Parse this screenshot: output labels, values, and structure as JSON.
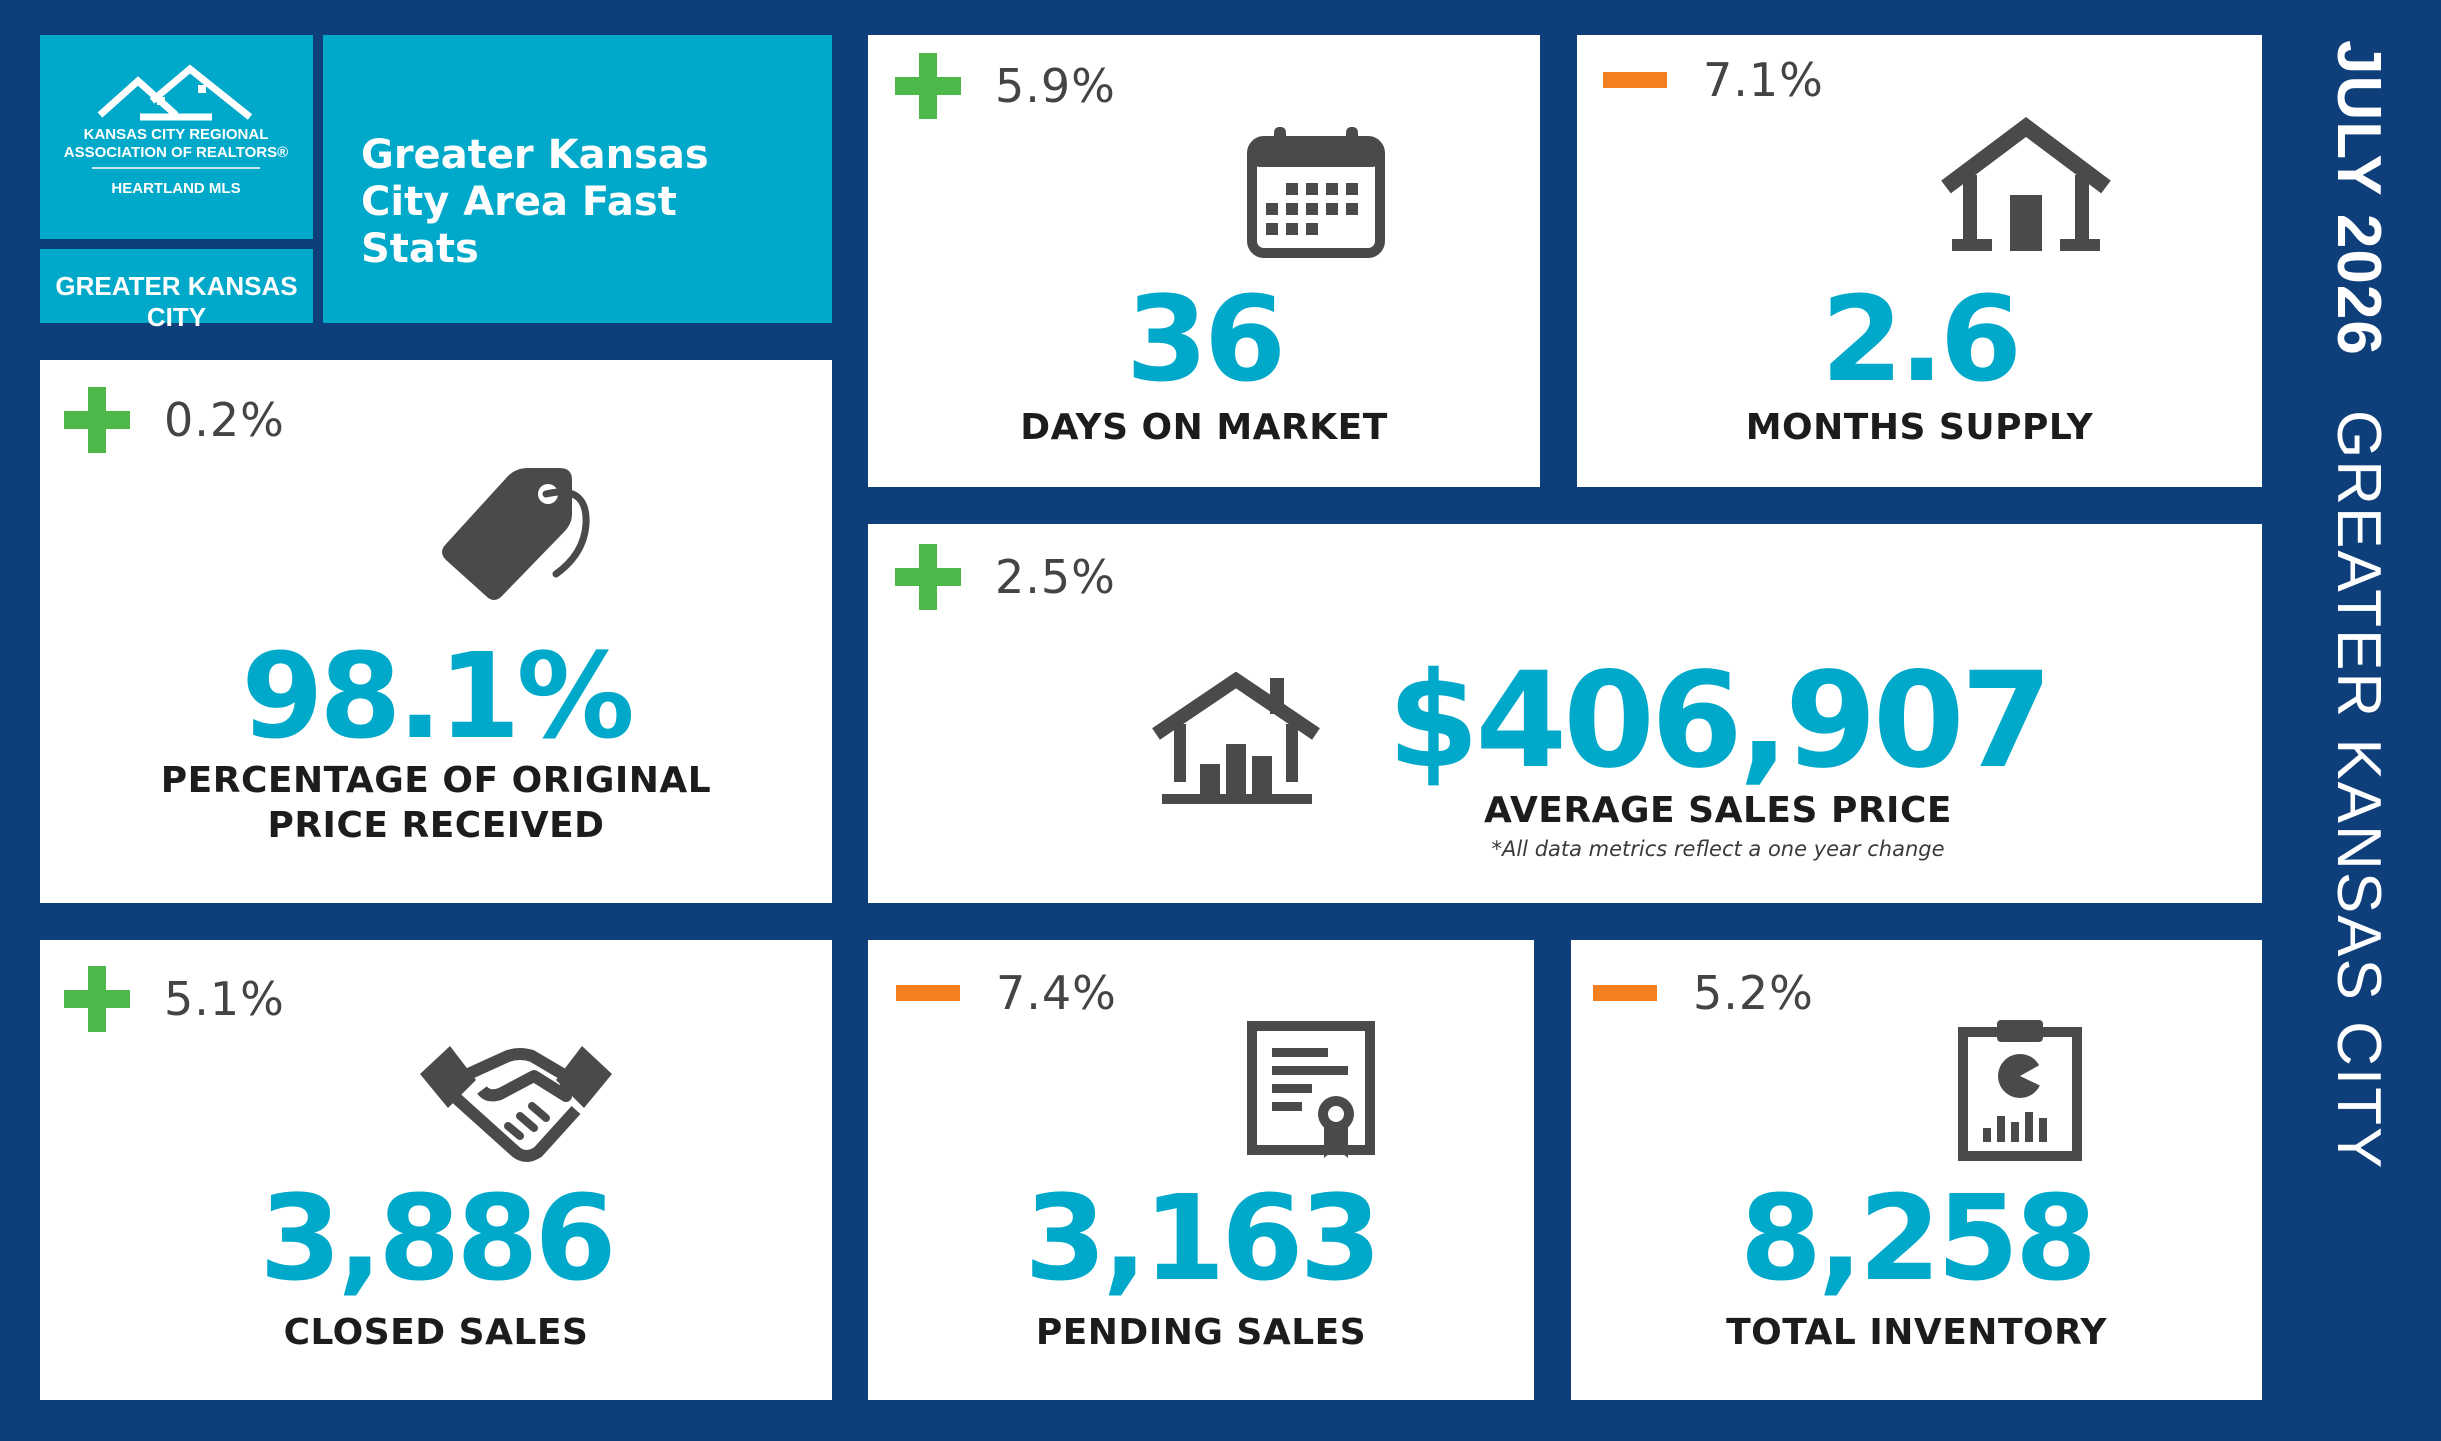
{
  "brand": {
    "org_line1": "KANSAS CITY REGIONAL",
    "org_line2": "ASSOCIATION OF REALTORS®",
    "org_line3": "HEARTLAND MLS",
    "area_tab": "GREATER KANSAS CITY",
    "title": "Greater Kansas City Area Fast Stats"
  },
  "sidebar": {
    "month": "JULY 2026",
    "area": "GREATER KANSAS CITY"
  },
  "stats": {
    "days_on_market": {
      "sign": "plus",
      "change": "5.9%",
      "value": "36",
      "label": "DAYS ON MARKET",
      "icon": "calendar-icon"
    },
    "months_supply": {
      "sign": "minus",
      "change": "7.1%",
      "value": "2.6",
      "label": "MONTHS SUPPLY",
      "icon": "house-icon"
    },
    "pct_original": {
      "sign": "plus",
      "change": "0.2%",
      "value": "98.1%",
      "label_line1": "PERCENTAGE OF ORIGINAL",
      "label_line2": "PRICE RECEIVED",
      "icon": "price-tag-icon"
    },
    "avg_price": {
      "sign": "plus",
      "change": "2.5%",
      "value": "$406,907",
      "label": "AVERAGE SALES PRICE",
      "note": "*All data metrics reflect a one year change",
      "icon": "house-chart-icon"
    },
    "closed_sales": {
      "sign": "plus",
      "change": "5.1%",
      "value": "3,886",
      "label": "CLOSED SALES",
      "icon": "handshake-icon"
    },
    "pending_sales": {
      "sign": "minus",
      "change": "7.4%",
      "value": "3,163",
      "label": "PENDING SALES",
      "icon": "certificate-icon"
    },
    "total_inventory": {
      "sign": "minus",
      "change": "5.2%",
      "value": "8,258",
      "label": "TOTAL INVENTORY",
      "icon": "clipboard-chart-icon"
    }
  },
  "colors": {
    "background": "#0f3f7a",
    "teal": "#00a9c9",
    "increase": "#4cb849",
    "decrease": "#f47f20",
    "icon": "#4a4a4d"
  }
}
